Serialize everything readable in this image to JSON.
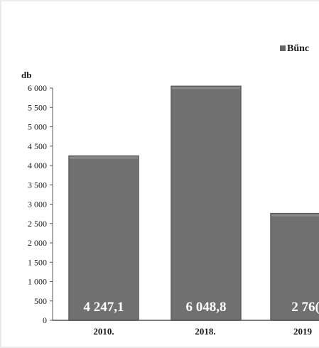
{
  "chart_data": {
    "type": "bar",
    "title": "",
    "xlabel": "",
    "ylabel": "db",
    "ylim": [
      0,
      6000
    ],
    "yticks": [
      0,
      500,
      1000,
      1500,
      2000,
      2500,
      3000,
      3500,
      4000,
      4500,
      5000,
      5500,
      6000
    ],
    "ytick_labels": [
      "0",
      "500",
      "1 000",
      "1 500",
      "2 000",
      "2 500",
      "3 000",
      "3 500",
      "4 000",
      "4 500",
      "5 000",
      "5 500",
      "6 000"
    ],
    "categories": [
      "2010.",
      "2018.",
      "2019"
    ],
    "series": [
      {
        "name": "Bűnc",
        "values": [
          4247.1,
          6048.8,
          2760
        ],
        "labels": [
          "4 247,1",
          "6 048,8",
          "2 76("
        ]
      }
    ],
    "legend": "top-right",
    "grid": false,
    "colors": {
      "bar": "#707070",
      "bar_edge": "#5c5c5c",
      "bar_top": "#8a8a8a",
      "axis": "#555555",
      "text": "#1a1a1a",
      "data_label": "#ffffff",
      "legend_swatch": "#666666"
    }
  }
}
